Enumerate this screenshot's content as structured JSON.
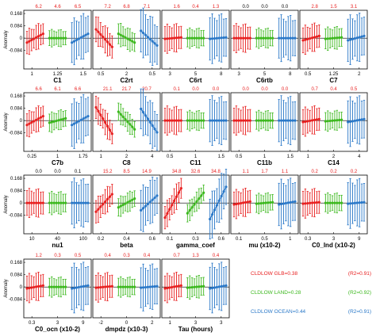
{
  "chart_data": {
    "type": "scatter",
    "ylabel": "Anomaly",
    "yticks": [
      -0.084,
      0,
      0.084,
      0.168
    ],
    "ylim": [
      -0.21,
      0.19
    ],
    "colors": {
      "GLB": "#e82020",
      "LAND": "#3cb81e",
      "OCEAN": "#2a78c8"
    },
    "panels": [
      {
        "name": "C1",
        "ticks": [
          "1",
          "1.25",
          "1.5"
        ],
        "top": [
          "6.2",
          "4.6",
          "6.5"
        ],
        "top_colors": [
          "#e82020",
          "#e82020",
          "#e82020"
        ],
        "trend": [
          0.03,
          0.0,
          0.03
        ],
        "err": [
          0.09,
          0.06,
          0.16
        ]
      },
      {
        "name": "C2rt",
        "ticks": [
          "0.5",
          "2",
          "0.5"
        ],
        "top": [
          "7.2",
          "6.8",
          "7.1"
        ],
        "top_colors": [
          "#e82020",
          "#e82020",
          "#e82020"
        ],
        "trend": [
          -0.06,
          -0.03,
          -0.05
        ],
        "err": [
          0.1,
          0.08,
          0.17
        ]
      },
      {
        "name": "C6rt",
        "ticks": [
          "3",
          "5",
          "8"
        ],
        "top": [
          "1.6",
          "0.4",
          "1.3"
        ],
        "top_colors": [
          "#e82020",
          "#e82020",
          "#e82020"
        ],
        "trend": [
          0.005,
          0.0,
          0.005
        ],
        "err": [
          0.1,
          0.07,
          0.17
        ]
      },
      {
        "name": "C6rtb",
        "ticks": [
          "3",
          "5",
          "8"
        ],
        "top": [
          "0.0",
          "0.0",
          "0.0"
        ],
        "top_colors": [
          "#000000",
          "#000000",
          "#000000"
        ],
        "trend": [
          0.0,
          0.0,
          0.0
        ],
        "err": [
          0.1,
          0.07,
          0.16
        ]
      },
      {
        "name": "C7",
        "ticks": [
          "0.5",
          "1.25",
          "2"
        ],
        "top": [
          "2.8",
          "1.5",
          "3.1"
        ],
        "top_colors": [
          "#e82020",
          "#e82020",
          "#e82020"
        ],
        "trend": [
          0.015,
          0.005,
          0.015
        ],
        "err": [
          0.1,
          0.08,
          0.17
        ]
      },
      {
        "name": "C7b",
        "ticks": [
          "0.25",
          "1",
          "1.75"
        ],
        "top": [
          "6.6",
          "6.1",
          "6.6"
        ],
        "top_colors": [
          "#e82020",
          "#e82020",
          "#e82020"
        ],
        "trend": [
          0.03,
          0.015,
          0.03
        ],
        "err": [
          0.09,
          0.07,
          0.17
        ]
      },
      {
        "name": "C8",
        "ticks": [
          "1",
          "2",
          "4"
        ],
        "top": [
          "21.1",
          "21.7",
          "20.7"
        ],
        "top_colors": [
          "#e82020",
          "#e82020",
          "#e82020"
        ],
        "trend": [
          -0.09,
          -0.06,
          -0.08
        ],
        "err": [
          0.09,
          0.07,
          0.16
        ]
      },
      {
        "name": "C11",
        "ticks": [
          "0.5",
          "1",
          "1.5"
        ],
        "top": [
          "0.1",
          "0.0",
          "0.0"
        ],
        "top_colors": [
          "#e82020",
          "#e82020",
          "#e82020"
        ],
        "trend": [
          0.0,
          0.0,
          0.0
        ],
        "err": [
          0.1,
          0.07,
          0.17
        ]
      },
      {
        "name": "C11b",
        "ticks": [
          "0.5",
          "1",
          "1.5"
        ],
        "top": [
          "0.0",
          "0.0",
          "0.0"
        ],
        "top_colors": [
          "#e82020",
          "#e82020",
          "#e82020"
        ],
        "trend": [
          0.0,
          0.0,
          0.0
        ],
        "err": [
          0.1,
          0.07,
          0.17
        ]
      },
      {
        "name": "C14",
        "ticks": [
          "1",
          "2",
          "4"
        ],
        "top": [
          "0.7",
          "0.4",
          "0.5"
        ],
        "top_colors": [
          "#e82020",
          "#e82020",
          "#e82020"
        ],
        "trend": [
          0.01,
          0.005,
          0.01
        ],
        "err": [
          0.1,
          0.07,
          0.17
        ]
      },
      {
        "name": "nu1",
        "ticks": [
          "10",
          "40",
          "100"
        ],
        "top": [
          "0.0",
          "0.0",
          "0.1"
        ],
        "top_colors": [
          "#000000",
          "#000000",
          "#000000"
        ],
        "trend": [
          0.0,
          0.0,
          0.0
        ],
        "err": [
          0.1,
          0.08,
          0.17
        ]
      },
      {
        "name": "beta",
        "ticks": [
          "0.2",
          "0.4",
          "0.6"
        ],
        "top": [
          "15.2",
          "8.5",
          "14.9"
        ],
        "top_colors": [
          "#e82020",
          "#e82020",
          "#e82020"
        ],
        "trend": [
          0.06,
          0.03,
          0.05
        ],
        "err": [
          0.09,
          0.07,
          0.16
        ]
      },
      {
        "name": "gamma_coef",
        "ticks": [
          "0.1",
          "0.3",
          "0.6"
        ],
        "top": [
          "34.8",
          "32.6",
          "34.8"
        ],
        "top_colors": [
          "#e82020",
          "#e82020",
          "#e82020"
        ],
        "trend": [
          0.1,
          0.07,
          0.11
        ],
        "err": [
          0.09,
          0.07,
          0.16
        ]
      },
      {
        "name": "mu (x10-2)",
        "ticks": [
          "0.1",
          "0.5",
          "1"
        ],
        "top": [
          "1.1",
          "1.7",
          "1.1"
        ],
        "top_colors": [
          "#e82020",
          "#e82020",
          "#e82020"
        ],
        "trend": [
          0.01,
          0.005,
          0.01
        ],
        "err": [
          0.1,
          0.07,
          0.17
        ]
      },
      {
        "name": "C0_lnd (x10-2)",
        "ticks": [
          "0.3",
          "3",
          "9"
        ],
        "top": [
          "0.2",
          "0.2",
          "0.2"
        ],
        "top_colors": [
          "#e82020",
          "#e82020",
          "#e82020"
        ],
        "trend": [
          0.005,
          0.0,
          0.005
        ],
        "err": [
          0.1,
          0.07,
          0.17
        ]
      },
      {
        "name": "C0_ocn (x10-2)",
        "ticks": [
          "0.3",
          "3",
          "9"
        ],
        "top": [
          "1.2",
          "0.3",
          "0.5"
        ],
        "top_colors": [
          "#e82020",
          "#e82020",
          "#e82020"
        ],
        "trend": [
          0.01,
          0.0,
          0.01
        ],
        "err": [
          0.1,
          0.07,
          0.17
        ]
      },
      {
        "name": "dmpdz (x10-3)",
        "ticks": [
          "-2",
          "0",
          "2"
        ],
        "top": [
          "0.4",
          "0.3",
          "0.4"
        ],
        "top_colors": [
          "#e82020",
          "#e82020",
          "#e82020"
        ],
        "trend": [
          0.005,
          0.0,
          0.005
        ],
        "err": [
          0.1,
          0.07,
          0.16
        ]
      },
      {
        "name": "Tau (hours)",
        "ticks": [
          "1",
          "3",
          "3"
        ],
        "top": [
          "0.7",
          "1.3",
          "0.4"
        ],
        "top_colors": [
          "#e82020",
          "#e82020",
          "#e82020"
        ],
        "trend": [
          0.01,
          0.005,
          0.01
        ],
        "err": [
          0.1,
          0.08,
          0.17
        ]
      }
    ],
    "legend": [
      {
        "label": "CLDLOW GLB=0.38",
        "r2": "(R2=0.91)",
        "color": "#e82020"
      },
      {
        "label": "CLDLOW LAND=0.28",
        "r2": "(R2=0.92)",
        "color": "#3cb81e"
      },
      {
        "label": "CLDLOW OCEAN=0.44",
        "r2": "(R2=0.91)",
        "color": "#2a78c8"
      }
    ]
  }
}
